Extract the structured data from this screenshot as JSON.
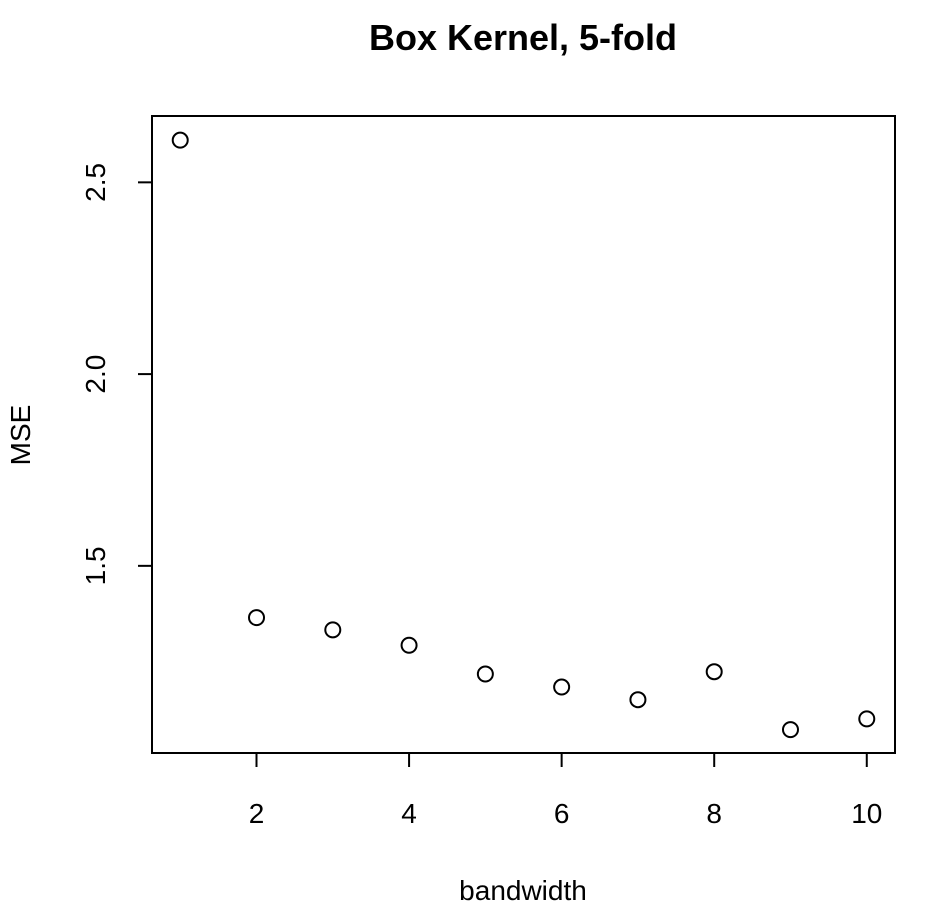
{
  "chart_data": {
    "type": "scatter",
    "title": "Box Kernel, 5-fold",
    "xlabel": "bandwidth",
    "ylabel": "MSE",
    "xlim": [
      0.63,
      10.37
    ],
    "ylim": [
      1.012,
      2.673
    ],
    "xticks": [
      2,
      4,
      6,
      8,
      10
    ],
    "xtick_labels": [
      "2",
      "4",
      "6",
      "8",
      "10"
    ],
    "yticks": [
      1.5,
      2.0,
      2.5
    ],
    "ytick_labels": [
      "1.5",
      "2.0",
      "2.5"
    ],
    "grid": false,
    "legend": "none",
    "marker": "open-circle",
    "x": [
      1,
      2,
      3,
      4,
      5,
      6,
      7,
      8,
      9,
      10
    ],
    "y": [
      2.61,
      1.365,
      1.333,
      1.293,
      1.218,
      1.184,
      1.151,
      1.224,
      1.073,
      1.101
    ],
    "colors": {
      "marker_stroke": "#000000",
      "axes": "#000000",
      "background": "#ffffff"
    }
  }
}
